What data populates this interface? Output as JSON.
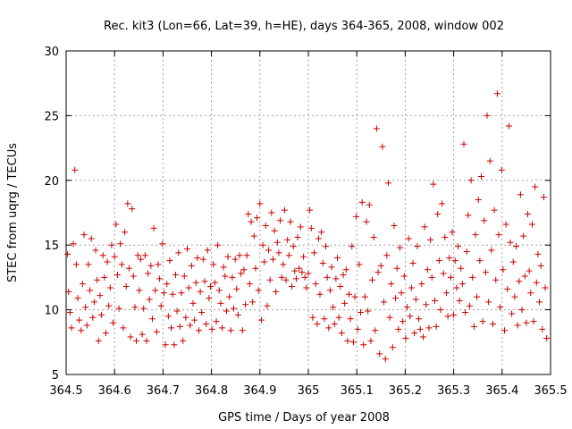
{
  "chart_data": {
    "type": "scatter",
    "title": "Rec. kit3 (Lon=66, Lat=39, h=HE), days 364-365, 2008, window 002",
    "xlabel": "GPS time / Days of year 2008",
    "ylabel": "STEC from uqrg / TECUs",
    "xlim": [
      364.5,
      365.5
    ],
    "ylim": [
      5,
      30
    ],
    "xticks": [
      364.5,
      364.6,
      364.7,
      364.8,
      364.9,
      365,
      365.1,
      365.2,
      365.3,
      365.4,
      365.5
    ],
    "xtick_labels": [
      "364.5",
      "364.6",
      "364.7",
      "364.8",
      "364.9",
      "365",
      "365.1",
      "365.2",
      "365.3",
      "365.4",
      "365.5"
    ],
    "yticks": [
      5,
      10,
      15,
      20,
      25,
      30
    ],
    "ytick_labels": [
      "5",
      "10",
      "15",
      "20",
      "25",
      "30"
    ],
    "grid": true,
    "marker": "+",
    "color": "#cc0000",
    "points": [
      [
        364.503,
        14.3
      ],
      [
        364.505,
        11.4
      ],
      [
        364.508,
        9.8
      ],
      [
        364.511,
        8.6
      ],
      [
        364.515,
        15.1
      ],
      [
        364.518,
        20.8
      ],
      [
        364.521,
        13.5
      ],
      [
        364.524,
        10.9
      ],
      [
        364.527,
        9.2
      ],
      [
        364.531,
        8.4
      ],
      [
        364.534,
        12.0
      ],
      [
        364.537,
        15.8
      ],
      [
        364.54,
        10.2
      ],
      [
        364.543,
        8.8
      ],
      [
        364.546,
        13.5
      ],
      [
        364.549,
        11.5
      ],
      [
        364.552,
        15.5
      ],
      [
        364.555,
        9.4
      ],
      [
        364.558,
        10.6
      ],
      [
        364.561,
        14.6
      ],
      [
        364.564,
        12.3
      ],
      [
        364.567,
        7.6
      ],
      [
        364.57,
        11.1
      ],
      [
        364.573,
        9.6
      ],
      [
        364.576,
        14.2
      ],
      [
        364.579,
        12.5
      ],
      [
        364.582,
        8.2
      ],
      [
        364.585,
        13.7
      ],
      [
        364.588,
        10.3
      ],
      [
        364.591,
        11.7
      ],
      [
        364.594,
        15.0
      ],
      [
        364.597,
        9.0
      ],
      [
        364.6,
        14.1
      ],
      [
        364.603,
        16.6
      ],
      [
        364.606,
        12.7
      ],
      [
        364.609,
        10.1
      ],
      [
        364.612,
        15.1
      ],
      [
        364.615,
        13.5
      ],
      [
        364.618,
        8.6
      ],
      [
        364.621,
        16.0
      ],
      [
        364.624,
        11.8
      ],
      [
        364.627,
        18.2
      ],
      [
        364.63,
        13.2
      ],
      [
        364.633,
        7.9
      ],
      [
        364.636,
        17.8
      ],
      [
        364.639,
        12.6
      ],
      [
        364.642,
        10.2
      ],
      [
        364.645,
        7.6
      ],
      [
        364.648,
        14.2
      ],
      [
        364.651,
        11.5
      ],
      [
        364.654,
        13.9
      ],
      [
        364.657,
        8.1
      ],
      [
        364.66,
        10.1
      ],
      [
        364.663,
        14.2
      ],
      [
        364.666,
        7.6
      ],
      [
        364.669,
        12.8
      ],
      [
        364.672,
        10.8
      ],
      [
        364.675,
        13.4
      ],
      [
        364.678,
        9.3
      ],
      [
        364.681,
        16.3
      ],
      [
        364.684,
        11.5
      ],
      [
        364.687,
        8.3
      ],
      [
        364.69,
        13.5
      ],
      [
        364.693,
        12.4
      ],
      [
        364.696,
        10.3
      ],
      [
        364.699,
        15.1
      ],
      [
        364.702,
        11.3
      ],
      [
        364.705,
        7.3
      ],
      [
        364.708,
        12.0
      ],
      [
        364.711,
        9.5
      ],
      [
        364.714,
        13.8
      ],
      [
        364.717,
        8.6
      ],
      [
        364.72,
        11.2
      ],
      [
        364.723,
        7.3
      ],
      [
        364.726,
        12.7
      ],
      [
        364.729,
        9.9
      ],
      [
        364.732,
        14.4
      ],
      [
        364.735,
        8.7
      ],
      [
        364.738,
        11.3
      ],
      [
        364.741,
        7.6
      ],
      [
        364.744,
        12.6
      ],
      [
        364.747,
        9.4
      ],
      [
        364.75,
        14.7
      ],
      [
        364.753,
        11.7
      ],
      [
        364.756,
        8.8
      ],
      [
        364.759,
        13.4
      ],
      [
        364.762,
        10.5
      ],
      [
        364.765,
        9.2
      ],
      [
        364.768,
        12.1
      ],
      [
        364.771,
        14.0
      ],
      [
        364.774,
        8.4
      ],
      [
        364.777,
        11.4
      ],
      [
        364.78,
        9.8
      ],
      [
        364.783,
        13.9
      ],
      [
        364.786,
        12.2
      ],
      [
        364.789,
        8.9
      ],
      [
        364.792,
        14.6
      ],
      [
        364.795,
        10.9
      ],
      [
        364.798,
        11.8
      ],
      [
        364.801,
        8.5
      ],
      [
        364.804,
        13.5
      ],
      [
        364.807,
        12.1
      ],
      [
        364.81,
        9.1
      ],
      [
        364.813,
        15.0
      ],
      [
        364.816,
        11.5
      ],
      [
        364.819,
        10.5
      ],
      [
        364.822,
        8.6
      ],
      [
        364.825,
        13.3
      ],
      [
        364.828,
        12.6
      ],
      [
        364.831,
        9.9
      ],
      [
        364.834,
        14.1
      ],
      [
        364.837,
        11.0
      ],
      [
        364.84,
        8.4
      ],
      [
        364.843,
        12.5
      ],
      [
        364.846,
        10.1
      ],
      [
        364.849,
        13.9
      ],
      [
        364.852,
        11.6
      ],
      [
        364.855,
        9.6
      ],
      [
        364.858,
        14.2
      ],
      [
        364.861,
        12.8
      ],
      [
        364.864,
        8.4
      ],
      [
        364.867,
        13.1
      ],
      [
        364.87,
        10.4
      ],
      [
        364.873,
        14.2
      ],
      [
        364.876,
        17.4
      ],
      [
        364.879,
        12.0
      ],
      [
        364.882,
        16.8
      ],
      [
        364.885,
        10.6
      ],
      [
        364.888,
        15.7
      ],
      [
        364.891,
        13.2
      ],
      [
        364.894,
        17.1
      ],
      [
        364.897,
        11.5
      ],
      [
        364.9,
        18.2
      ],
      [
        364.903,
        9.2
      ],
      [
        364.906,
        15.0
      ],
      [
        364.909,
        13.7
      ],
      [
        364.912,
        16.5
      ],
      [
        364.915,
        10.3
      ],
      [
        364.918,
        14.6
      ],
      [
        364.921,
        12.3
      ],
      [
        364.924,
        17.5
      ],
      [
        364.927,
        13.9
      ],
      [
        364.93,
        16.1
      ],
      [
        364.933,
        11.4
      ],
      [
        364.936,
        15.2
      ],
      [
        364.939,
        14.4
      ],
      [
        364.942,
        16.9
      ],
      [
        364.945,
        12.5
      ],
      [
        364.948,
        13.5
      ],
      [
        364.951,
        17.7
      ],
      [
        364.954,
        12.3
      ],
      [
        364.957,
        15.4
      ],
      [
        364.96,
        14.2
      ],
      [
        364.963,
        16.8
      ],
      [
        364.966,
        11.8
      ],
      [
        364.969,
        14.9
      ],
      [
        364.972,
        13.0
      ],
      [
        364.975,
        12.4
      ],
      [
        364.978,
        15.6
      ],
      [
        364.981,
        13.2
      ],
      [
        364.984,
        16.4
      ],
      [
        364.987,
        12.9
      ],
      [
        364.99,
        14.1
      ],
      [
        364.993,
        12.5
      ],
      [
        364.996,
        11.7
      ],
      [
        365.0,
        12.8
      ],
      [
        365.003,
        17.7
      ],
      [
        365.006,
        16.3
      ],
      [
        365.009,
        9.4
      ],
      [
        365.012,
        14.4
      ],
      [
        365.015,
        12.0
      ],
      [
        365.018,
        8.9
      ],
      [
        365.021,
        15.5
      ],
      [
        365.024,
        11.2
      ],
      [
        365.027,
        16.0
      ],
      [
        365.03,
        13.6
      ],
      [
        365.033,
        9.3
      ],
      [
        365.036,
        14.9
      ],
      [
        365.039,
        12.5
      ],
      [
        365.042,
        8.6
      ],
      [
        365.045,
        11.5
      ],
      [
        365.048,
        13.3
      ],
      [
        365.051,
        10.2
      ],
      [
        365.054,
        8.9
      ],
      [
        365.057,
        12.4
      ],
      [
        365.06,
        14.0
      ],
      [
        365.063,
        9.4
      ],
      [
        365.066,
        11.8
      ],
      [
        365.069,
        8.2
      ],
      [
        365.072,
        12.7
      ],
      [
        365.075,
        10.5
      ],
      [
        365.078,
        13.1
      ],
      [
        365.081,
        7.6
      ],
      [
        365.084,
        11.2
      ],
      [
        365.087,
        9.3
      ],
      [
        365.09,
        14.9
      ],
      [
        365.093,
        7.5
      ],
      [
        365.096,
        11.0
      ],
      [
        365.099,
        17.2
      ],
      [
        365.102,
        8.5
      ],
      [
        365.105,
        13.5
      ],
      [
        365.108,
        9.8
      ],
      [
        365.111,
        18.3
      ],
      [
        365.114,
        7.3
      ],
      [
        365.117,
        11.0
      ],
      [
        365.12,
        16.8
      ],
      [
        365.123,
        9.9
      ],
      [
        365.126,
        18.1
      ],
      [
        365.129,
        7.6
      ],
      [
        365.132,
        12.3
      ],
      [
        365.135,
        15.6
      ],
      [
        365.138,
        8.4
      ],
      [
        365.141,
        24.0
      ],
      [
        365.144,
        12.9
      ],
      [
        365.147,
        6.6
      ],
      [
        365.15,
        13.4
      ],
      [
        365.153,
        22.6
      ],
      [
        365.156,
        10.6
      ],
      [
        365.159,
        6.2
      ],
      [
        365.162,
        14.2
      ],
      [
        365.165,
        19.8
      ],
      [
        365.168,
        9.4
      ],
      [
        365.171,
        12.0
      ],
      [
        365.174,
        7.1
      ],
      [
        365.177,
        16.5
      ],
      [
        365.18,
        10.9
      ],
      [
        365.183,
        13.2
      ],
      [
        365.186,
        8.5
      ],
      [
        365.189,
        14.8
      ],
      [
        365.192,
        11.3
      ],
      [
        365.195,
        9.1
      ],
      [
        365.198,
        12.6
      ],
      [
        365.201,
        7.8
      ],
      [
        365.204,
        10.2
      ],
      [
        365.207,
        15.5
      ],
      [
        365.21,
        9.5
      ],
      [
        365.213,
        11.7
      ],
      [
        365.216,
        13.6
      ],
      [
        365.219,
        8.2
      ],
      [
        365.222,
        10.8
      ],
      [
        365.225,
        14.9
      ],
      [
        365.228,
        9.3
      ],
      [
        365.231,
        8.5
      ],
      [
        365.234,
        12.0
      ],
      [
        365.237,
        7.9
      ],
      [
        365.24,
        16.4
      ],
      [
        365.243,
        10.4
      ],
      [
        365.246,
        13.1
      ],
      [
        365.249,
        8.6
      ],
      [
        365.252,
        15.4
      ],
      [
        365.255,
        12.5
      ],
      [
        365.258,
        19.7
      ],
      [
        365.261,
        10.7
      ],
      [
        365.264,
        8.7
      ],
      [
        365.267,
        17.4
      ],
      [
        365.27,
        13.8
      ],
      [
        365.273,
        10.0
      ],
      [
        365.276,
        18.2
      ],
      [
        365.279,
        12.8
      ],
      [
        365.282,
        15.6
      ],
      [
        365.285,
        11.3
      ],
      [
        365.288,
        9.5
      ],
      [
        365.291,
        14.0
      ],
      [
        365.294,
        12.5
      ],
      [
        365.297,
        16.0
      ],
      [
        365.3,
        9.6
      ],
      [
        365.303,
        13.8
      ],
      [
        365.306,
        11.7
      ],
      [
        365.309,
        14.9
      ],
      [
        365.312,
        10.7
      ],
      [
        365.315,
        13.2
      ],
      [
        365.318,
        12.0
      ],
      [
        365.321,
        22.8
      ],
      [
        365.324,
        9.8
      ],
      [
        365.327,
        14.5
      ],
      [
        365.33,
        17.3
      ],
      [
        365.333,
        10.3
      ],
      [
        365.336,
        20.0
      ],
      [
        365.339,
        12.5
      ],
      [
        365.342,
        8.7
      ],
      [
        365.345,
        15.8
      ],
      [
        365.348,
        11.0
      ],
      [
        365.351,
        18.5
      ],
      [
        365.354,
        13.8
      ],
      [
        365.357,
        20.3
      ],
      [
        365.36,
        9.1
      ],
      [
        365.363,
        16.9
      ],
      [
        365.366,
        12.9
      ],
      [
        365.369,
        25.0
      ],
      [
        365.372,
        10.6
      ],
      [
        365.375,
        21.5
      ],
      [
        365.378,
        14.6
      ],
      [
        365.381,
        8.9
      ],
      [
        365.384,
        17.7
      ],
      [
        365.387,
        12.3
      ],
      [
        365.39,
        26.7
      ],
      [
        365.393,
        15.8
      ],
      [
        365.396,
        10.2
      ],
      [
        365.399,
        20.8
      ],
      [
        365.402,
        13.1
      ],
      [
        365.405,
        8.4
      ],
      [
        365.408,
        16.6
      ],
      [
        365.411,
        11.6
      ],
      [
        365.414,
        24.2
      ],
      [
        365.417,
        15.2
      ],
      [
        365.42,
        9.7
      ],
      [
        365.423,
        13.7
      ],
      [
        365.426,
        11.0
      ],
      [
        365.429,
        14.9
      ],
      [
        365.432,
        8.8
      ],
      [
        365.435,
        12.2
      ],
      [
        365.438,
        18.9
      ],
      [
        365.441,
        10.0
      ],
      [
        365.444,
        15.7
      ],
      [
        365.447,
        12.6
      ],
      [
        365.45,
        9.0
      ],
      [
        365.453,
        17.4
      ],
      [
        365.456,
        13.0
      ],
      [
        365.459,
        11.3
      ],
      [
        365.462,
        16.6
      ],
      [
        365.465,
        9.1
      ],
      [
        365.468,
        19.5
      ],
      [
        365.471,
        12.1
      ],
      [
        365.474,
        14.3
      ],
      [
        365.477,
        10.6
      ],
      [
        365.48,
        13.4
      ],
      [
        365.483,
        8.5
      ],
      [
        365.486,
        18.7
      ],
      [
        365.489,
        11.7
      ],
      [
        365.492,
        7.8
      ]
    ]
  }
}
